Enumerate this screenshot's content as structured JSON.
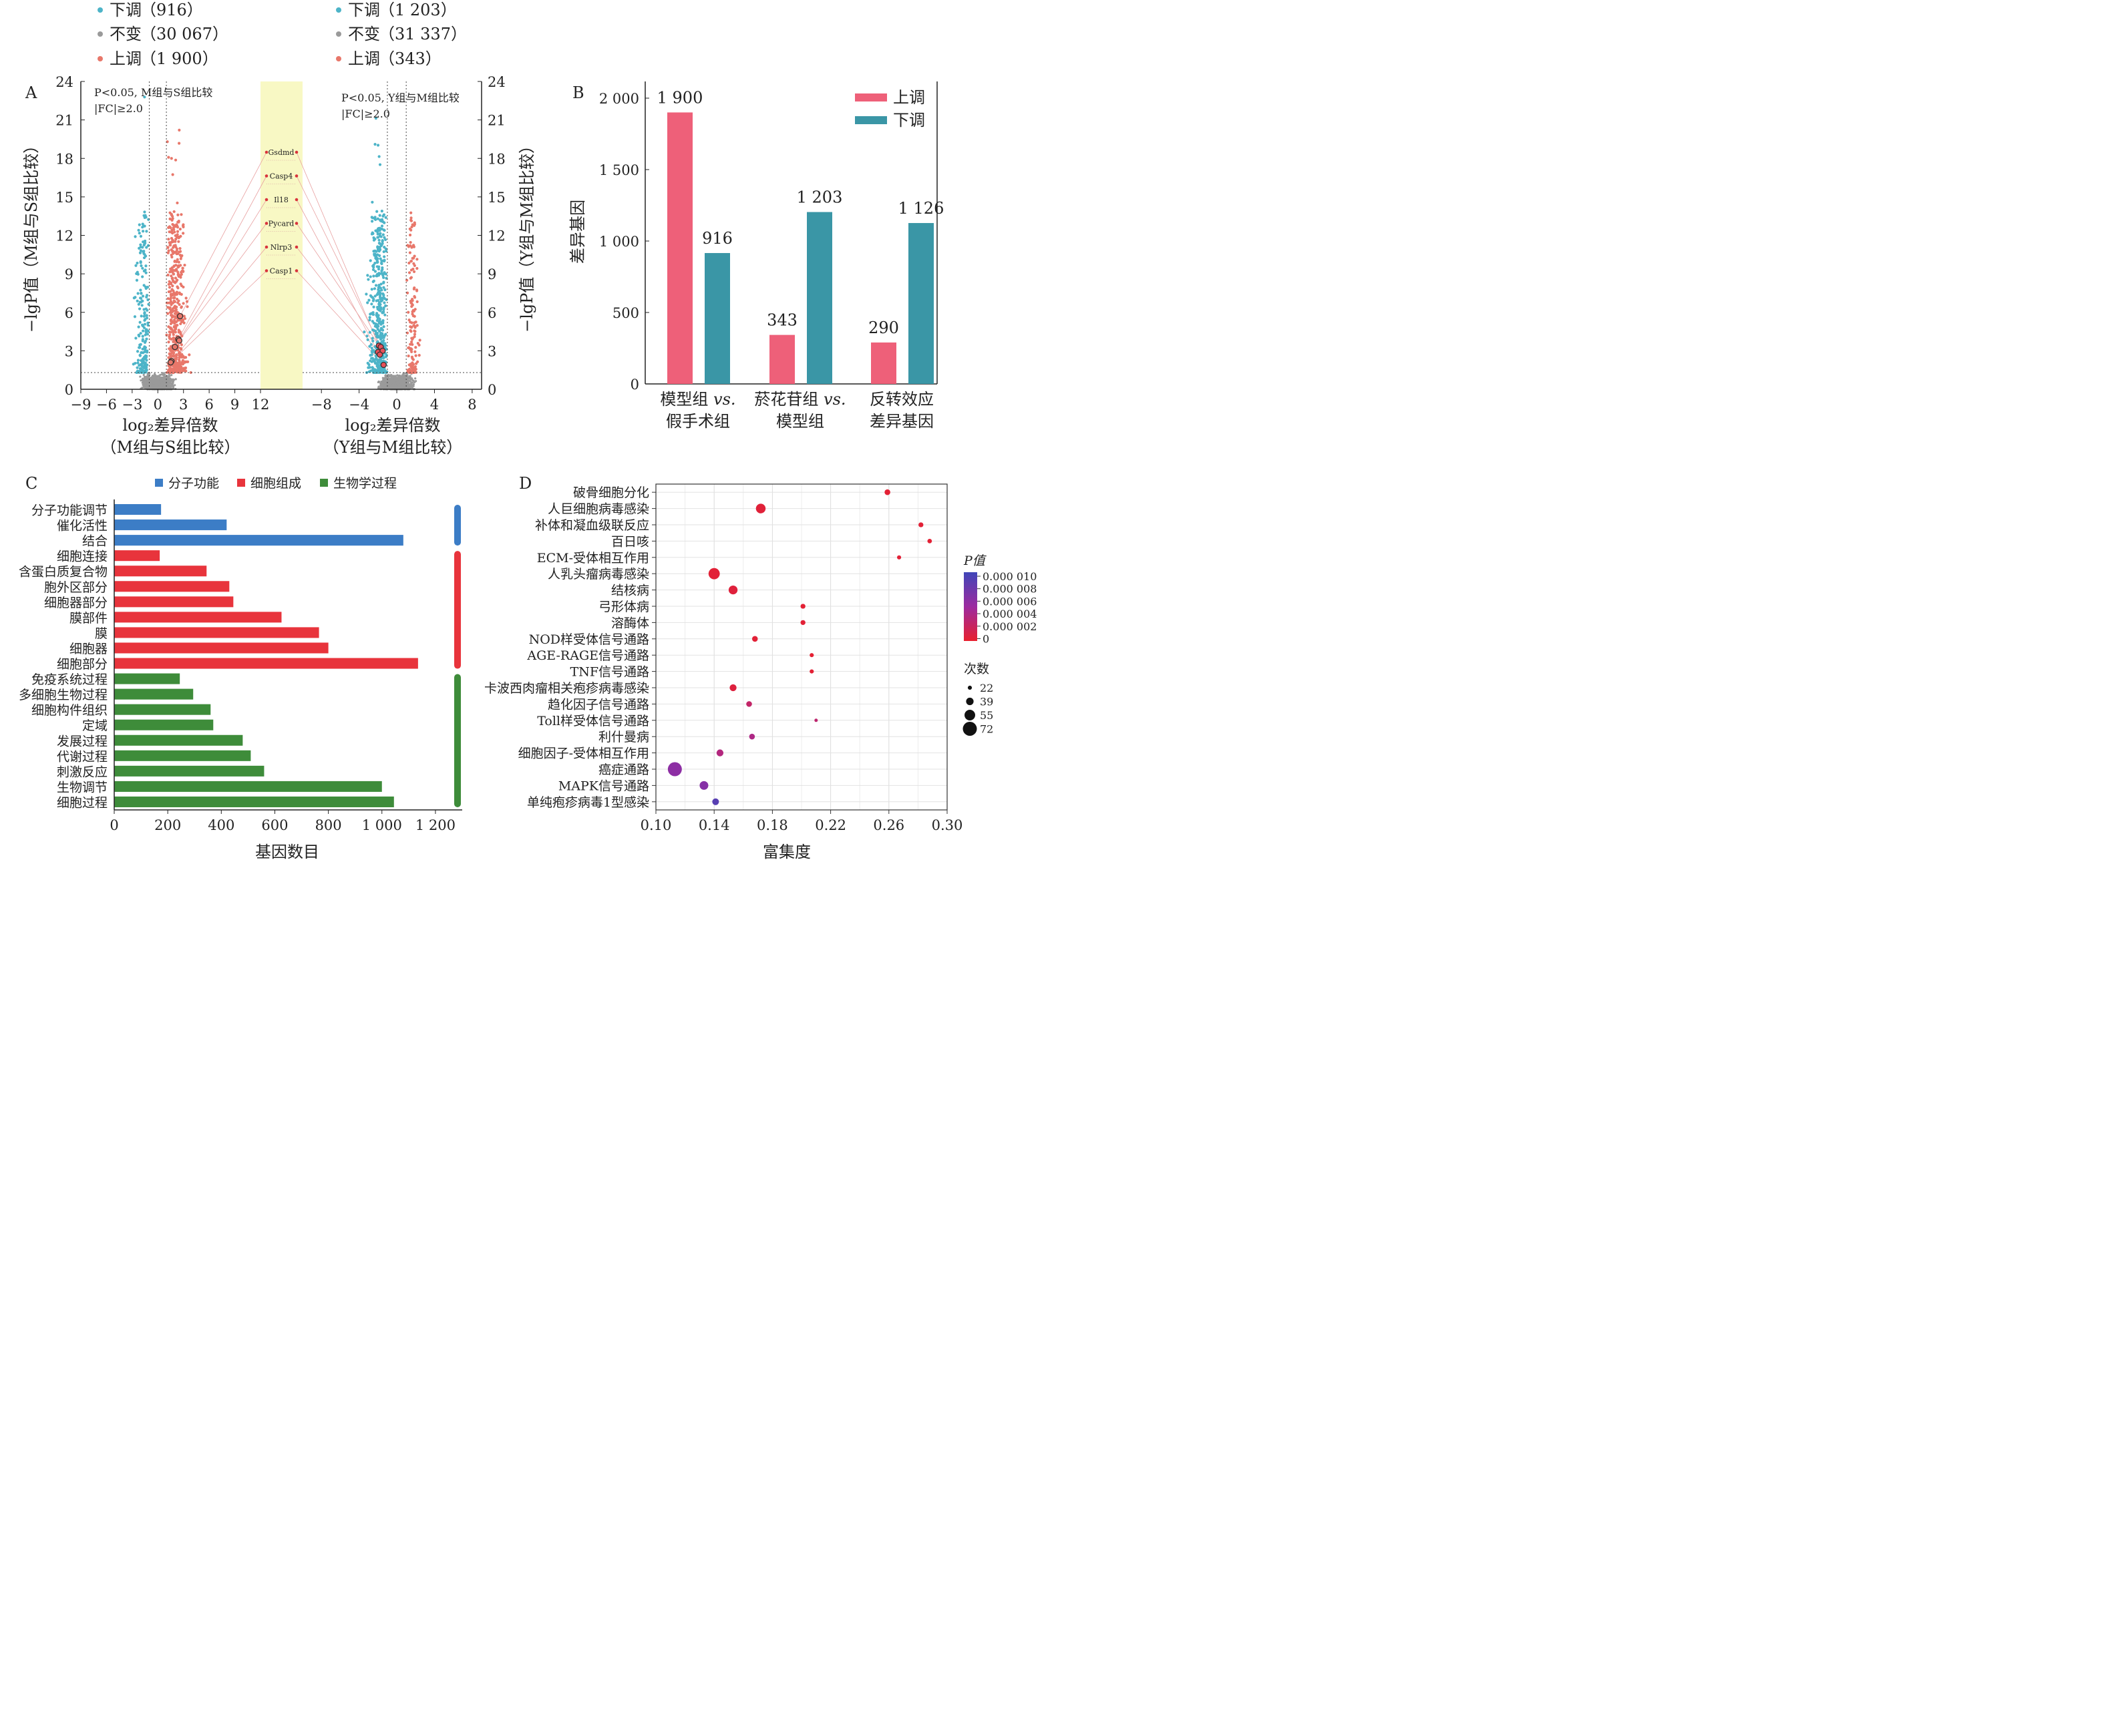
{
  "colors": {
    "up": "#e8776a",
    "down": "#4db4c8",
    "nochange": "#9a9a9a",
    "bar_up": "#ee6079",
    "bar_down": "#3a96a6",
    "mf": "#3c7dc6",
    "cc": "#e8343c",
    "bp": "#3e8c3a",
    "highlight": "#f8f8c4"
  },
  "chart_data": [
    {
      "panel": "A",
      "type": "scatter",
      "legend_left": [
        {
          "name": "下调",
          "count": "（916）"
        },
        {
          "name": "不变",
          "count": "（30 067）"
        },
        {
          "name": "上调",
          "count": "（1 900）"
        }
      ],
      "legend_right": [
        {
          "name": "下调",
          "count": "（1 203）"
        },
        {
          "name": "不变",
          "count": "（31 337）"
        },
        {
          "name": "上调",
          "count": "（343）"
        }
      ],
      "left": {
        "annotation_line1": "P<0.05, M组与S组比较",
        "annotation_line2": "|FC|≥2.0",
        "xlabel_line1": "log₂差异倍数",
        "xlabel_line2": "（M组与S组比较）",
        "ylabel": "−lgP值（M组与S组比较）",
        "xlim": [
          -9,
          12
        ],
        "ylim": [
          0,
          24
        ],
        "xticks": [
          -9,
          -6,
          -3,
          0,
          3,
          6,
          9,
          12
        ],
        "yticks": [
          0,
          3,
          6,
          9,
          12,
          15,
          18,
          21,
          24
        ],
        "p_threshold_lgP": 1.3,
        "fc_thresholds": [
          -1,
          1
        ],
        "highlighted_points": [
          {
            "x": 2.6,
            "y": 5.7
          },
          {
            "x": 2.4,
            "y": 3.9
          },
          {
            "x": 2.0,
            "y": 3.3
          },
          {
            "x": 2.5,
            "y": 3.8
          },
          {
            "x": 1.6,
            "y": 2.2
          },
          {
            "x": 1.5,
            "y": 2.1
          }
        ]
      },
      "right": {
        "annotation_line1": "P<0.05, Y组与M组比较",
        "annotation_line2": "|FC|≥2.0",
        "xlabel_line1": "log₂差异倍数",
        "xlabel_line2": "（Y组与M组比较）",
        "ylabel": "−lgP值（Y组与M组比较）",
        "xlim": [
          -10,
          9
        ],
        "ylim": [
          0,
          24
        ],
        "xticks": [
          -8,
          -4,
          0,
          4,
          8
        ],
        "yticks": [
          0,
          3,
          6,
          9,
          12,
          15,
          18,
          21,
          24
        ],
        "p_threshold_lgP": 1.3,
        "fc_thresholds": [
          -1,
          1
        ],
        "highlighted_points": [
          {
            "x": -1.9,
            "y": 3.4
          },
          {
            "x": -1.7,
            "y": 3.3
          },
          {
            "x": -2.0,
            "y": 2.9
          },
          {
            "x": -1.5,
            "y": 3.0
          },
          {
            "x": -1.8,
            "y": 2.7
          },
          {
            "x": -1.4,
            "y": 1.9
          }
        ]
      },
      "gene_labels": [
        "Gsdmd",
        "Casp4",
        "Il18",
        "Pycard",
        "Nlrp3",
        "Casp1"
      ]
    },
    {
      "panel": "B",
      "type": "bar",
      "ylabel": "差异基因",
      "ylim": [
        0,
        2000
      ],
      "yticks": [
        0,
        500,
        1000,
        1500,
        2000
      ],
      "ytick_labels": [
        "0",
        "500",
        "1 000",
        "1 500",
        "2 000"
      ],
      "categories": [
        {
          "line1": "模型组 vs.",
          "line2": "假手术组"
        },
        {
          "line1": "菸花苷组 vs.",
          "line2": "模型组"
        },
        {
          "line1": "反转效应",
          "line2": "差异基因"
        }
      ],
      "series": [
        {
          "name": "上调",
          "values": [
            1900,
            343,
            290
          ],
          "labels": [
            "1 900",
            "343",
            "290"
          ]
        },
        {
          "name": "下调",
          "values": [
            916,
            1203,
            1126
          ],
          "labels": [
            "916",
            "1 203",
            "1 126"
          ]
        }
      ],
      "legend_position": "top-right"
    },
    {
      "panel": "C",
      "type": "bar",
      "orientation": "horizontal",
      "xlabel": "基因数目",
      "xlim": [
        0,
        1300
      ],
      "xticks": [
        0,
        200,
        400,
        600,
        800,
        1000,
        1200
      ],
      "xtick_labels": [
        "0",
        "200",
        "400",
        "600",
        "800",
        "1 000",
        "1 200"
      ],
      "legend": [
        "分子功能",
        "细胞组成",
        "生物学过程"
      ],
      "legend_position": "top",
      "categories": [
        "分子功能调节",
        "催化活性",
        "结合",
        "细胞连接",
        "含蛋白质复合物",
        "胞外区部分",
        "细胞器部分",
        "膜部件",
        "膜",
        "细胞器",
        "细胞部分",
        "免疫系统过程",
        "多细胞生物过程",
        "细胞构件组织",
        "定域",
        "发展过程",
        "代谢过程",
        "刺激反应",
        "生物调节",
        "细胞过程"
      ],
      "groups": [
        "mf",
        "mf",
        "mf",
        "cc",
        "cc",
        "cc",
        "cc",
        "cc",
        "cc",
        "cc",
        "cc",
        "bp",
        "bp",
        "bp",
        "bp",
        "bp",
        "bp",
        "bp",
        "bp",
        "bp"
      ],
      "values": [
        175,
        420,
        1080,
        170,
        345,
        430,
        445,
        625,
        765,
        800,
        1135,
        245,
        295,
        360,
        370,
        480,
        510,
        560,
        1000,
        1045
      ]
    },
    {
      "panel": "D",
      "type": "scatter",
      "xlabel": "富集度",
      "xlim": [
        0.1,
        0.3
      ],
      "xticks": [
        0.1,
        0.14,
        0.18,
        0.22,
        0.26,
        0.3
      ],
      "xtick_labels": [
        "0.10",
        "0.14",
        "0.18",
        "0.22",
        "0.26",
        "0.30"
      ],
      "grid": true,
      "pathways": [
        "破骨细胞分化",
        "人巨细胞病毒感染",
        "补体和凝血级联反应",
        "百日咳",
        "ECM-受体相互作用",
        "人乳头瘤病毒感染",
        "结核病",
        "弓形体病",
        "溶酶体",
        "NOD样受体信号通路",
        "AGE-RAGE信号通路",
        "TNF信号通路",
        "卡波西肉瘤相关疱疹病毒感染",
        "趋化因子信号通路",
        "Toll样受体信号通路",
        "利什曼病",
        "细胞因子-受体相互作用",
        "癌症通路",
        "MAPK信号通路",
        "单纯疱疹病毒1型感染"
      ],
      "x": [
        0.259,
        0.172,
        0.282,
        0.288,
        0.267,
        0.14,
        0.153,
        0.201,
        0.201,
        0.168,
        0.207,
        0.207,
        0.153,
        0.164,
        0.21,
        0.166,
        0.144,
        0.113,
        0.133,
        0.141
      ],
      "count": [
        30,
        50,
        26,
        24,
        22,
        58,
        46,
        26,
        26,
        30,
        22,
        22,
        36,
        30,
        18,
        30,
        36,
        72,
        45,
        35
      ],
      "p": [
        0.0003,
        0.0005,
        0.0004,
        0.0003,
        0.0004,
        0.0004,
        0.0006,
        0.0003,
        0.0004,
        0.0004,
        0.0002,
        0.0003,
        0.0007,
        0.0025,
        0.0028,
        0.0038,
        0.0035,
        0.0058,
        0.0062,
        0.0087
      ],
      "color_legend": {
        "title": "P值",
        "range": [
          0,
          1e-05
        ],
        "labels": [
          "0.000 010",
          "0.000 008",
          "0.000 006",
          "0.000 004",
          "0.000 002",
          "0"
        ]
      },
      "size_legend": {
        "title": "次数",
        "values": [
          22,
          39,
          55,
          72
        ],
        "labels": [
          "22",
          "39",
          "55",
          "72"
        ]
      }
    }
  ]
}
